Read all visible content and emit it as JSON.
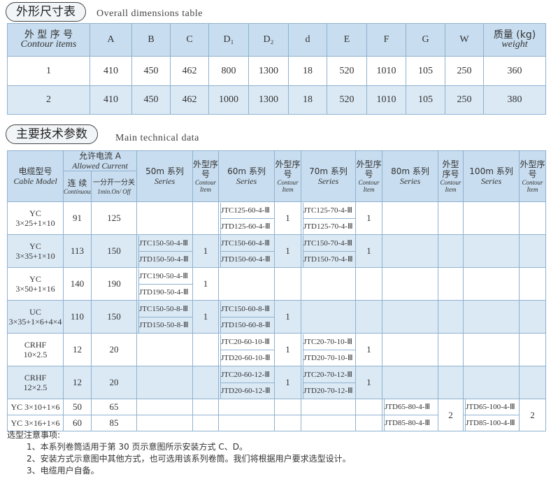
{
  "section1": {
    "title_cn": "外形尺寸表",
    "title_en": "Overall dimensions table"
  },
  "table1": {
    "headers": [
      {
        "cn": "外 型 序 号",
        "en": "Contour items"
      },
      "A",
      "B",
      "C",
      "D₁",
      "D₂",
      "d",
      "E",
      "F",
      "G",
      "W",
      {
        "cn": "质量 (kg)",
        "en": "weight"
      }
    ],
    "rows": [
      [
        1,
        410,
        450,
        462,
        800,
        1300,
        18,
        520,
        1010,
        105,
        250,
        360
      ],
      [
        2,
        410,
        450,
        462,
        1000,
        1300,
        18,
        520,
        1010,
        105,
        250,
        380
      ]
    ]
  },
  "section2": {
    "title_cn": "主要技术参数",
    "title_en": "Main technical data"
  },
  "table2": {
    "header": {
      "model_cn": "电缆型号",
      "model_en": "Cable Model",
      "current_cn": "允许电流 A",
      "current_en": "Allowed Current",
      "cont_cn": "连 续",
      "cont_en": "Continuously",
      "onoff_cn": "一分开一分关",
      "onoff_en": "1min.On/ Off",
      "series": [
        {
          "name": "50m 系列",
          "en": "Series",
          "item_cn": "外型序号",
          "item_en": "Contour Item"
        },
        {
          "name": "60m 系列",
          "en": "Series",
          "item_cn": "外型序号",
          "item_en": "Contour Item"
        },
        {
          "name": "70m 系列",
          "en": "Series",
          "item_cn": "外型序号",
          "item_en": "Contour Item"
        },
        {
          "name": "80m 系列",
          "en": "Series",
          "item_cn": "外型序号",
          "item_en": "Contour Item"
        },
        {
          "name": "100m 系列",
          "en": "Series",
          "item_cn": "外型序号",
          "item_en": "Contour Item"
        }
      ]
    },
    "rows": [
      {
        "model": [
          "YC",
          "3×25+1×10"
        ],
        "continuous": 91,
        "on_off": 125,
        "series": [
          {
            "entries": [],
            "item": null
          },
          {
            "entries": [
              "JTC125-60-4-Ⅲ",
              "JTD125-60-4-Ⅲ"
            ],
            "item": 1
          },
          {
            "entries": [
              "JTC125-70-4-Ⅲ",
              "JTD125-70-4-Ⅲ"
            ],
            "item": 1
          },
          {
            "entries": [],
            "item": null
          },
          {
            "entries": [],
            "item": null
          }
        ]
      },
      {
        "model": [
          "YC",
          "3×35+1×10"
        ],
        "continuous": 113,
        "on_off": 150,
        "series": [
          {
            "entries": [
              "JTC150-50-4-Ⅲ",
              "JTD150-50-4-Ⅲ"
            ],
            "item": 1
          },
          {
            "entries": [
              "JTC150-60-4-Ⅲ",
              "JTD150-60-4-Ⅲ"
            ],
            "item": 1
          },
          {
            "entries": [
              "JTC150-70-4-Ⅲ",
              "JTD150-70-4-Ⅲ"
            ],
            "item": 1
          },
          {
            "entries": [],
            "item": null
          },
          {
            "entries": [],
            "item": null
          }
        ]
      },
      {
        "model": [
          "YC",
          "3×50+1×16"
        ],
        "continuous": 140,
        "on_off": 190,
        "series": [
          {
            "entries": [
              "JTC190-50-4-Ⅲ",
              "JTD190-50-4-Ⅲ"
            ],
            "item": 1
          },
          {
            "entries": [],
            "item": null
          },
          {
            "entries": [],
            "item": null
          },
          {
            "entries": [],
            "item": null
          },
          {
            "entries": [],
            "item": null
          }
        ]
      },
      {
        "model": [
          "UC",
          "3×35+1×6+4×4"
        ],
        "continuous": 110,
        "on_off": 150,
        "series": [
          {
            "entries": [
              "JTC150-50-8-Ⅲ",
              "JTD150-50-8-Ⅲ"
            ],
            "item": 1
          },
          {
            "entries": [
              "JTC150-60-8-Ⅲ",
              "JTD150-60-8-Ⅲ"
            ],
            "item": 1
          },
          {
            "entries": [],
            "item": null
          },
          {
            "entries": [],
            "item": null
          },
          {
            "entries": [],
            "item": null
          }
        ]
      },
      {
        "model": [
          "CRHF",
          "10×2.5"
        ],
        "continuous": 12,
        "on_off": 20,
        "series": [
          {
            "entries": [],
            "item": null
          },
          {
            "entries": [
              "JTC20-60-10-Ⅲ",
              "JTD20-60-10-Ⅲ"
            ],
            "item": 1
          },
          {
            "entries": [
              "JTC20-70-10-Ⅲ",
              "JTD20-70-10-Ⅲ"
            ],
            "item": 1
          },
          {
            "entries": [],
            "item": null
          },
          {
            "entries": [],
            "item": null
          }
        ]
      },
      {
        "model": [
          "CRHF",
          "12×2.5"
        ],
        "continuous": 12,
        "on_off": 20,
        "series": [
          {
            "entries": [],
            "item": null
          },
          {
            "entries": [
              "JTC20-60-12-Ⅲ",
              "JTD20-60-12-Ⅲ"
            ],
            "item": 1
          },
          {
            "entries": [
              "JTC20-70-12-Ⅲ",
              "JTD20-70-12-Ⅲ"
            ],
            "item": 1
          },
          {
            "entries": [],
            "item": null
          },
          {
            "entries": [],
            "item": null
          }
        ]
      },
      {
        "model": [
          "YC 3×10+1×6"
        ],
        "continuous": 50,
        "on_off": 65,
        "series": [
          {
            "entries": [],
            "item": null
          },
          {
            "entries": [],
            "item": null
          },
          {
            "entries": [],
            "item": null
          },
          {
            "entries": [
              "JTD65-80-4-Ⅲ"
            ],
            "item": 2
          },
          {
            "entries": [
              "JTD65-100-4-Ⅲ"
            ],
            "item": 2
          }
        ]
      },
      {
        "model": [
          "YC 3×16+1×6"
        ],
        "continuous": 60,
        "on_off": 85,
        "series": [
          {
            "entries": [],
            "item": null
          },
          {
            "entries": [],
            "item": null
          },
          {
            "entries": [],
            "item": null
          },
          {
            "entries": [
              "JTD85-80-4-Ⅲ"
            ],
            "item": null
          },
          {
            "entries": [
              "JTD85-100-4-Ⅲ"
            ],
            "item": null
          }
        ]
      }
    ]
  },
  "notes": {
    "title": "选型注意事项:",
    "items": [
      "1、本系列卷筒适用于第 30 页示意图所示安装方式 C、D。",
      "2、安装方式示意图中其他方式，也可选用该系列卷筒。我们将根据用户要求选型设计。",
      "3、电缆用户自备。"
    ]
  }
}
